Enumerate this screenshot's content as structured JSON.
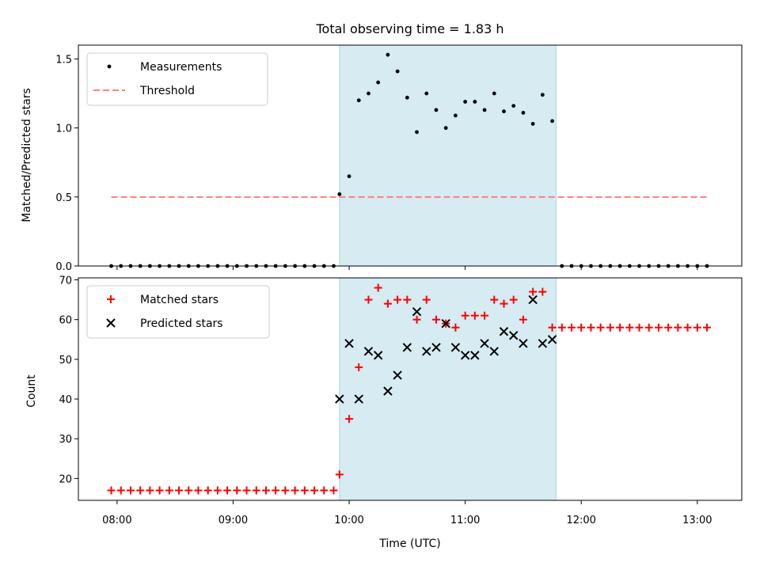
{
  "title": "Total observing time = 1.83 h",
  "xlabel": "Time (UTC)",
  "x_ticks": [
    "08:00",
    "09:00",
    "10:00",
    "11:00",
    "12:00",
    "13:00"
  ],
  "colors": {
    "shade": "#add8e6",
    "threshold": "#ff7f7f",
    "matched": "#ff0000",
    "predicted": "#000000",
    "measurement": "#000000"
  },
  "chart_data": [
    {
      "type": "scatter",
      "ylabel": "Matched/Predicted stars",
      "ylim": [
        0,
        1.6
      ],
      "xlim": [
        "07:40",
        "13:23"
      ],
      "y_ticks": [
        "0.0",
        "0.5",
        "1.0",
        "1.5"
      ],
      "shaded_interval": [
        "09:55",
        "11:47"
      ],
      "legend": {
        "position": "top-left",
        "entries": [
          "Measurements",
          "Threshold"
        ]
      },
      "threshold": {
        "name": "Threshold",
        "value": 0.5,
        "x_range": [
          "07:57",
          "13:05"
        ]
      },
      "series": [
        {
          "name": "Measurements",
          "x": [
            "07:57",
            "08:02",
            "08:07",
            "08:12",
            "08:17",
            "08:22",
            "08:27",
            "08:32",
            "08:37",
            "08:42",
            "08:47",
            "08:52",
            "08:57",
            "09:02",
            "09:07",
            "09:12",
            "09:17",
            "09:22",
            "09:27",
            "09:32",
            "09:37",
            "09:42",
            "09:47",
            "09:52",
            "09:55",
            "10:00",
            "10:05",
            "10:10",
            "10:15",
            "10:20",
            "10:25",
            "10:30",
            "10:35",
            "10:40",
            "10:45",
            "10:50",
            "10:55",
            "11:00",
            "11:05",
            "11:10",
            "11:15",
            "11:20",
            "11:25",
            "11:30",
            "11:35",
            "11:40",
            "11:45",
            "11:50",
            "11:55",
            "12:00",
            "12:05",
            "12:10",
            "12:15",
            "12:20",
            "12:25",
            "12:30",
            "12:35",
            "12:40",
            "12:45",
            "12:50",
            "12:55",
            "13:00",
            "13:05"
          ],
          "y": [
            0,
            0,
            0,
            0,
            0,
            0,
            0,
            0,
            0,
            0,
            0,
            0,
            0,
            0,
            0,
            0,
            0,
            0,
            0,
            0,
            0,
            0,
            0,
            0,
            0.52,
            0.65,
            1.2,
            1.25,
            1.33,
            1.53,
            1.41,
            1.22,
            0.97,
            1.25,
            1.13,
            1.0,
            1.09,
            1.19,
            1.19,
            1.13,
            1.25,
            1.12,
            1.16,
            1.11,
            1.03,
            1.24,
            1.05,
            0,
            0,
            0,
            0,
            0,
            0,
            0,
            0,
            0,
            0,
            0,
            0,
            0,
            0,
            0,
            0
          ]
        }
      ]
    },
    {
      "type": "scatter",
      "ylabel": "Count",
      "ylim": [
        14.5,
        70.5
      ],
      "xlim": [
        "07:40",
        "13:23"
      ],
      "y_ticks": [
        "20",
        "30",
        "40",
        "50",
        "60",
        "70"
      ],
      "shaded_interval": [
        "09:55",
        "11:47"
      ],
      "legend": {
        "position": "top-left",
        "entries": [
          "Matched stars",
          "Predicted stars"
        ]
      },
      "series": [
        {
          "name": "Matched stars",
          "x": [
            "07:57",
            "08:02",
            "08:07",
            "08:12",
            "08:17",
            "08:22",
            "08:27",
            "08:32",
            "08:37",
            "08:42",
            "08:47",
            "08:52",
            "08:57",
            "09:02",
            "09:07",
            "09:12",
            "09:17",
            "09:22",
            "09:27",
            "09:32",
            "09:37",
            "09:42",
            "09:47",
            "09:52",
            "09:55",
            "10:00",
            "10:05",
            "10:10",
            "10:15",
            "10:20",
            "10:25",
            "10:30",
            "10:35",
            "10:40",
            "10:45",
            "10:50",
            "10:55",
            "11:00",
            "11:05",
            "11:10",
            "11:15",
            "11:20",
            "11:25",
            "11:30",
            "11:35",
            "11:40",
            "11:45",
            "11:50",
            "11:55",
            "12:00",
            "12:05",
            "12:10",
            "12:15",
            "12:20",
            "12:25",
            "12:30",
            "12:35",
            "12:40",
            "12:45",
            "12:50",
            "12:55",
            "13:00",
            "13:05"
          ],
          "y": [
            17,
            17,
            17,
            17,
            17,
            17,
            17,
            17,
            17,
            17,
            17,
            17,
            17,
            17,
            17,
            17,
            17,
            17,
            17,
            17,
            17,
            17,
            17,
            17,
            21,
            35,
            48,
            65,
            68,
            64,
            65,
            65,
            60,
            65,
            60,
            59,
            58,
            61,
            61,
            61,
            65,
            64,
            65,
            60,
            67,
            67,
            58,
            58,
            58,
            58,
            58,
            58,
            58,
            58,
            58,
            58,
            58,
            58,
            58,
            58,
            58,
            58,
            58
          ]
        },
        {
          "name": "Predicted stars",
          "x": [
            "09:55",
            "10:00",
            "10:05",
            "10:10",
            "10:15",
            "10:20",
            "10:25",
            "10:30",
            "10:35",
            "10:40",
            "10:45",
            "10:50",
            "10:55",
            "11:00",
            "11:05",
            "11:10",
            "11:15",
            "11:20",
            "11:25",
            "11:30",
            "11:35",
            "11:40",
            "11:45"
          ],
          "y": [
            40,
            54,
            40,
            52,
            51,
            42,
            46,
            53,
            62,
            52,
            53,
            59,
            53,
            51,
            51,
            54,
            52,
            57,
            56,
            54,
            65,
            54,
            55
          ]
        }
      ]
    }
  ]
}
